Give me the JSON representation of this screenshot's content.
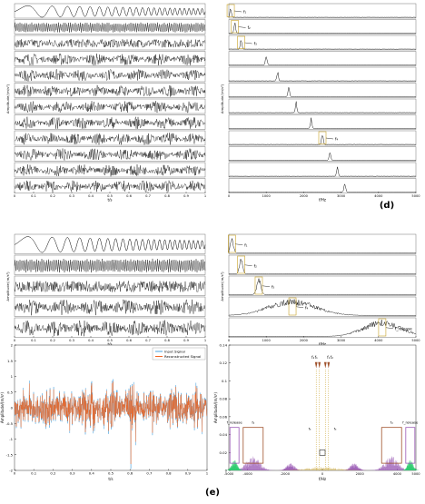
{
  "figure": {
    "panel_d_label": "(d)",
    "panel_e_label": "(e)"
  },
  "chart_data": [
    {
      "id": "d-time",
      "type": "line",
      "panel": "d",
      "xlabel": "t/s",
      "ylabel": "Amplitude/(m/s²)",
      "xlim": [
        0,
        1
      ],
      "xticks": [
        "0",
        "0.1",
        "0.2",
        "0.3",
        "0.4",
        "0.5",
        "0.6",
        "0.7",
        "0.8",
        "0.9",
        "1"
      ],
      "rows": 12,
      "row_labels": []
    },
    {
      "id": "d-spectrum",
      "type": "line",
      "panel": "d",
      "xlabel": "f/Hz",
      "ylabel": "Amplitude/(m/s²)",
      "xlim": [
        0,
        5000
      ],
      "xticks": [
        "0",
        "1000",
        "2000",
        "3000",
        "4000",
        "5000"
      ],
      "rows": 12,
      "peak_hz": [
        50,
        160,
        330,
        1000,
        1300,
        1600,
        1800,
        2200,
        2500,
        2700,
        2900,
        3100
      ],
      "annotations": [
        {
          "row": 0,
          "text": "f₁"
        },
        {
          "row": 1,
          "text": "f₂"
        },
        {
          "row": 2,
          "text": "f₃"
        },
        {
          "row": 8,
          "text": "f₄"
        }
      ]
    },
    {
      "id": "e-time",
      "type": "line",
      "panel": "e",
      "xlabel": "t/s",
      "ylabel": "Amplitude/(m/s²)",
      "xlim": [
        0,
        1
      ],
      "xticks": [
        "0",
        "0.1",
        "0.2",
        "0.3",
        "0.4",
        "0.5",
        "0.6",
        "0.7",
        "0.8",
        "0.9",
        "1"
      ],
      "rows": 5
    },
    {
      "id": "e-spectrum",
      "type": "line",
      "panel": "e",
      "xlabel": "f/Hz",
      "ylabel": "Amplitude/(m/s²)",
      "xlim": [
        0,
        5000
      ],
      "xticks": [
        "0",
        "1000",
        "2000",
        "3000",
        "4000",
        "5000"
      ],
      "rows": 5,
      "annotations": [
        {
          "row": 0,
          "text": "f₁"
        },
        {
          "row": 1,
          "text": "f₂"
        },
        {
          "row": 2,
          "text": "f₃"
        },
        {
          "row": 3,
          "text": "f₄"
        },
        {
          "row": 4,
          "text": "f_release"
        }
      ]
    },
    {
      "id": "input-vs-reconstructed",
      "type": "line",
      "panel": "e",
      "xlabel": "t/s",
      "ylabel": "Amplitude/(m/s²)",
      "xlim": [
        0,
        1
      ],
      "ylim": [
        -2,
        2
      ],
      "xticks": [
        "0",
        "0.1",
        "0.2",
        "0.3",
        "0.4",
        "0.5",
        "0.6",
        "0.7",
        "0.8",
        "0.9",
        "1"
      ],
      "yticks": [
        "-2",
        "-1.5",
        "-1",
        "-0.5",
        "0",
        "0.5",
        "1",
        "1.5",
        "2"
      ],
      "legend": "top-right",
      "series": [
        {
          "name": "Input Signal",
          "color": "#4aa3df"
        },
        {
          "name": "Reconstructed Signal",
          "color": "#f26522"
        }
      ]
    },
    {
      "id": "two-sided-spectrum",
      "type": "line",
      "panel": "e",
      "xlabel": "f/Hz",
      "ylabel": "Amplitude/(m/s²)",
      "xlim": [
        -5000,
        5000
      ],
      "ylim": [
        0,
        0.14
      ],
      "xticks": [
        "-5000",
        "-4000",
        "-2000",
        "0",
        "2000",
        "4000",
        "5000"
      ],
      "yticks": [
        "0",
        "0.02",
        "0.04",
        "0.06",
        "0.08",
        "0.1",
        "0.12",
        "0.14"
      ],
      "annotations": [
        "f₁",
        "f₂",
        "f₃",
        "f₄",
        "f_release"
      ],
      "colors": {
        "purple": "#9b59b6",
        "green": "#2ecc71",
        "gold": "#c9a227",
        "callout": "#a0522d"
      }
    }
  ]
}
